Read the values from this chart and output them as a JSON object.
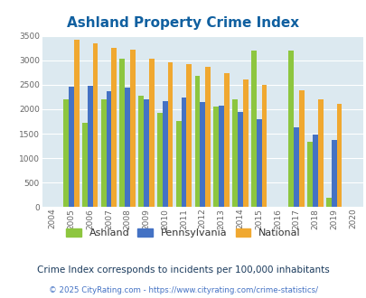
{
  "title": "Ashland Property Crime Index",
  "title_color": "#1060a0",
  "years": [
    "2004",
    "2005",
    "2006",
    "2007",
    "2008",
    "2009",
    "2010",
    "2011",
    "2012",
    "2013",
    "2014",
    "2015",
    "2016",
    "2017",
    "2018",
    "2019",
    "2020"
  ],
  "ashland": [
    0,
    2200,
    1730,
    2200,
    3040,
    2280,
    1920,
    1760,
    2680,
    2050,
    2210,
    3200,
    0,
    3200,
    1340,
    190,
    0
  ],
  "pennsylvania": [
    0,
    2460,
    2470,
    2360,
    2440,
    2210,
    2170,
    2240,
    2150,
    2070,
    1940,
    1790,
    0,
    1630,
    1490,
    1370,
    0
  ],
  "national": [
    0,
    3420,
    3340,
    3260,
    3210,
    3040,
    2950,
    2920,
    2870,
    2730,
    2610,
    2490,
    0,
    2380,
    2200,
    2110,
    0
  ],
  "ashland_color": "#8dc63f",
  "pennsylvania_color": "#4472c4",
  "national_color": "#f0a830",
  "plot_bg": "#dce9f0",
  "ylim": [
    0,
    3500
  ],
  "yticks": [
    0,
    500,
    1000,
    1500,
    2000,
    2500,
    3000,
    3500
  ],
  "title_fontsize": 11,
  "subtitle": "Crime Index corresponds to incidents per 100,000 inhabitants",
  "subtitle_color": "#1a3a5c",
  "footer": "© 2025 CityRating.com - https://www.cityrating.com/crime-statistics/",
  "footer_color": "#4472c4"
}
